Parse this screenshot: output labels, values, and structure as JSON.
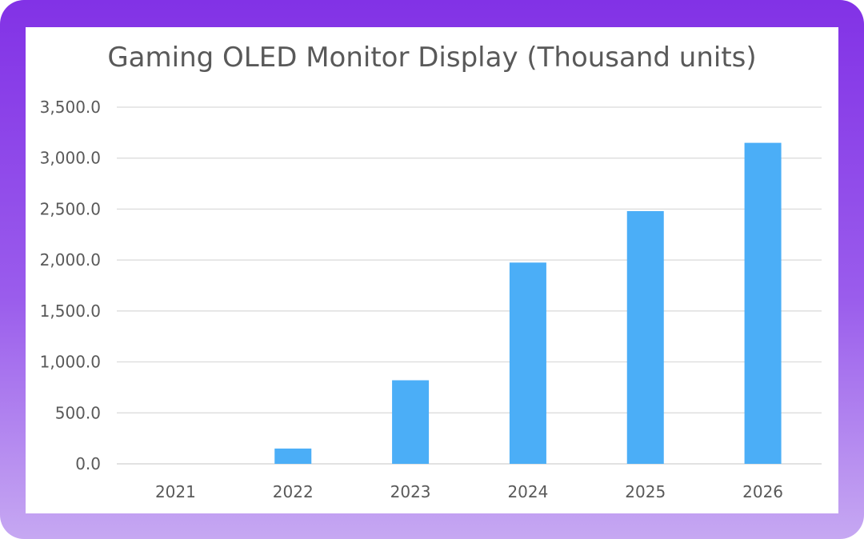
{
  "chart_data": {
    "type": "bar",
    "title": "Gaming OLED Monitor Display (Thousand units)",
    "categories": [
      "2021",
      "2022",
      "2023",
      "2024",
      "2025",
      "2026"
    ],
    "values": [
      0,
      150,
      820,
      1975,
      2480,
      3150
    ],
    "ylim": [
      0,
      3500
    ],
    "yticks": [
      0,
      500,
      1000,
      1500,
      2000,
      2500,
      3000,
      3500
    ],
    "ytick_labels": [
      "0.0",
      "500.0",
      "1,000.0",
      "1,500.0",
      "2,000.0",
      "2,500.0",
      "3,000.0",
      "3,500.0"
    ],
    "xlabel": "",
    "ylabel": "",
    "grid": true,
    "legend": "none",
    "bar_color": "#4baef7",
    "grid_color": "#d9d9d9",
    "text_color": "#595959"
  },
  "frame": {
    "border_color_top": "#8232e6",
    "border_color_bottom": "#c6a8f2"
  }
}
